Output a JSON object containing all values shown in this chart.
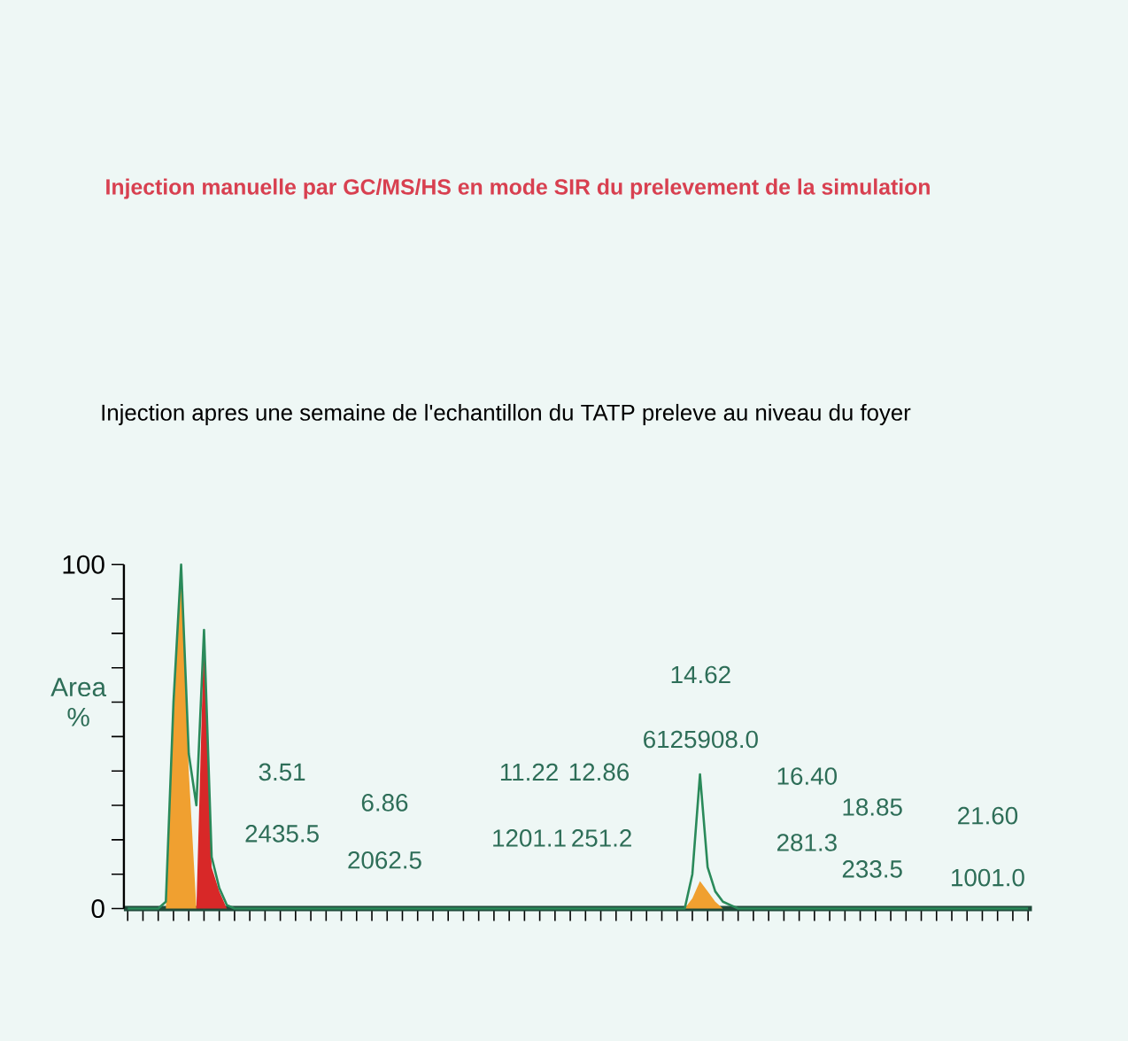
{
  "chart_data": {
    "type": "area",
    "title": "Injection manuelle par GC/MS/HS en mode SIR du prelevement de la simulation",
    "subtitle": "Injection apres une semaine de l'echantillon du TATP preleve au niveau du foyer",
    "ylabel": "Area %",
    "categories": [
      null,
      null,
      null,
      null,
      null,
      null,
      null,
      null,
      null,
      null,
      null,
      null,
      null,
      null,
      null,
      null,
      null,
      null,
      null,
      null,
      null,
      null,
      null,
      null,
      null,
      null,
      null,
      null,
      null,
      null,
      null,
      null,
      null,
      null,
      null,
      null,
      null,
      null,
      null,
      null,
      null,
      null,
      null,
      null,
      null,
      null,
      null,
      null,
      null,
      null,
      null,
      null,
      null,
      null,
      null,
      null,
      null,
      null,
      null,
      null,
      null,
      null,
      null,
      null,
      null,
      null,
      null,
      null,
      null,
      null,
      null,
      null,
      null,
      null,
      null,
      null,
      null,
      null,
      null,
      null,
      null,
      null,
      null,
      null,
      null,
      null,
      null,
      null,
      null,
      null,
      null,
      null,
      null,
      null,
      null,
      null,
      null,
      null,
      null,
      null,
      null,
      null,
      null,
      null,
      null,
      null,
      null,
      null,
      null,
      null,
      null,
      null,
      null,
      null,
      null,
      null,
      null,
      null,
      null
    ],
    "series": [
      {
        "color": "#f0a030",
        "values": [
          0,
          0,
          0,
          0,
          0,
          0,
          58,
          98,
          40,
          0,
          0,
          0,
          0,
          0,
          0,
          0,
          0,
          0,
          0,
          0,
          0,
          0,
          0,
          0,
          0,
          0,
          0,
          0,
          0,
          0,
          0,
          0,
          0,
          0,
          0,
          0,
          0,
          0,
          0,
          0,
          0,
          0,
          0,
          0,
          0,
          0,
          0,
          0,
          0,
          0,
          0,
          0,
          0,
          0,
          0,
          0,
          0,
          0,
          0,
          0,
          0,
          0,
          0,
          0,
          0,
          0,
          0,
          0,
          0,
          0,
          0,
          0,
          0,
          0,
          3,
          8,
          5,
          2,
          0,
          0,
          0,
          0,
          0,
          0,
          0,
          0,
          0,
          0,
          0,
          0,
          0,
          0,
          0,
          0,
          0,
          0,
          0,
          0,
          0,
          0,
          0,
          0,
          0,
          0,
          0,
          0,
          0,
          0,
          0,
          0,
          0,
          0,
          0,
          0,
          0,
          0,
          0,
          0,
          0
        ]
      },
      {
        "color": "#d82828",
        "values": [
          0,
          0,
          0,
          0,
          0,
          0,
          0,
          0,
          0,
          0,
          80,
          12,
          5,
          0,
          0,
          0,
          0,
          0,
          0,
          0,
          0,
          0,
          0,
          0,
          0,
          0,
          0,
          0,
          0,
          0,
          0,
          0,
          0,
          0,
          0,
          0,
          0,
          0,
          0,
          0,
          0,
          0,
          0,
          0,
          0,
          0,
          0,
          0,
          0,
          0,
          0,
          0,
          0,
          0,
          0,
          0,
          0,
          0,
          0,
          0,
          0,
          0,
          0,
          0,
          0,
          0,
          0,
          0,
          0,
          0,
          0,
          0,
          0,
          0,
          0,
          0,
          0,
          0,
          0,
          0,
          0,
          0,
          0,
          0,
          0,
          0,
          0,
          0,
          0,
          0,
          0,
          0,
          0,
          0,
          0,
          0,
          0,
          0,
          0,
          0,
          0,
          0,
          0,
          0,
          0,
          0,
          0,
          0,
          0,
          0,
          0,
          0,
          0,
          0,
          0,
          0,
          0,
          0,
          0
        ]
      },
      {
        "type": "line",
        "color": "#2a8a5a",
        "values": [
          0,
          0,
          0,
          0,
          0,
          2,
          60,
          100,
          45,
          30,
          81,
          15,
          6,
          1,
          0,
          0,
          0,
          0,
          0,
          0,
          0,
          0,
          0,
          0,
          0,
          0,
          0,
          0,
          0,
          0,
          0,
          0,
          0,
          0,
          0,
          0,
          0,
          0,
          0,
          0,
          0,
          0,
          0,
          0,
          0,
          0,
          0,
          0,
          0,
          0,
          0,
          0,
          0,
          0,
          0,
          0,
          0,
          0,
          0,
          0,
          0,
          0,
          0,
          0,
          0,
          0,
          0,
          0,
          0,
          0,
          0,
          0,
          0,
          0,
          10,
          39,
          12,
          5,
          2,
          1,
          0,
          0,
          0,
          0,
          0,
          0,
          0,
          0,
          0,
          0,
          0,
          0,
          0,
          0,
          0,
          0,
          0,
          0,
          0,
          0,
          0,
          0,
          0,
          0,
          0,
          0,
          0,
          0,
          0,
          0,
          0,
          0,
          0,
          0,
          0,
          0,
          0,
          0,
          0
        ]
      }
    ],
    "ylim": [
      0,
      100
    ],
    "yticks": [
      0,
      {
        "value": 10,
        "label": null
      },
      {
        "value": 20,
        "label": null
      },
      {
        "value": 30,
        "label": null
      },
      {
        "value": 40,
        "label": null
      },
      {
        "value": 50,
        "label": null
      },
      {
        "value": 60,
        "label": null
      },
      {
        "value": 70,
        "label": null
      },
      {
        "value": 80,
        "label": null
      },
      {
        "value": 90,
        "label": null
      },
      100
    ],
    "tick_labels": "y",
    "annotations": [
      "3.51",
      "2435.5",
      "6.86",
      "2062.5",
      "11.22",
      "1201.1",
      "12.86",
      "251.2",
      "14.62",
      "6125908.0",
      "16.40",
      "281.3",
      "18.85",
      "233.5",
      "21.60",
      "1001.0"
    ]
  }
}
